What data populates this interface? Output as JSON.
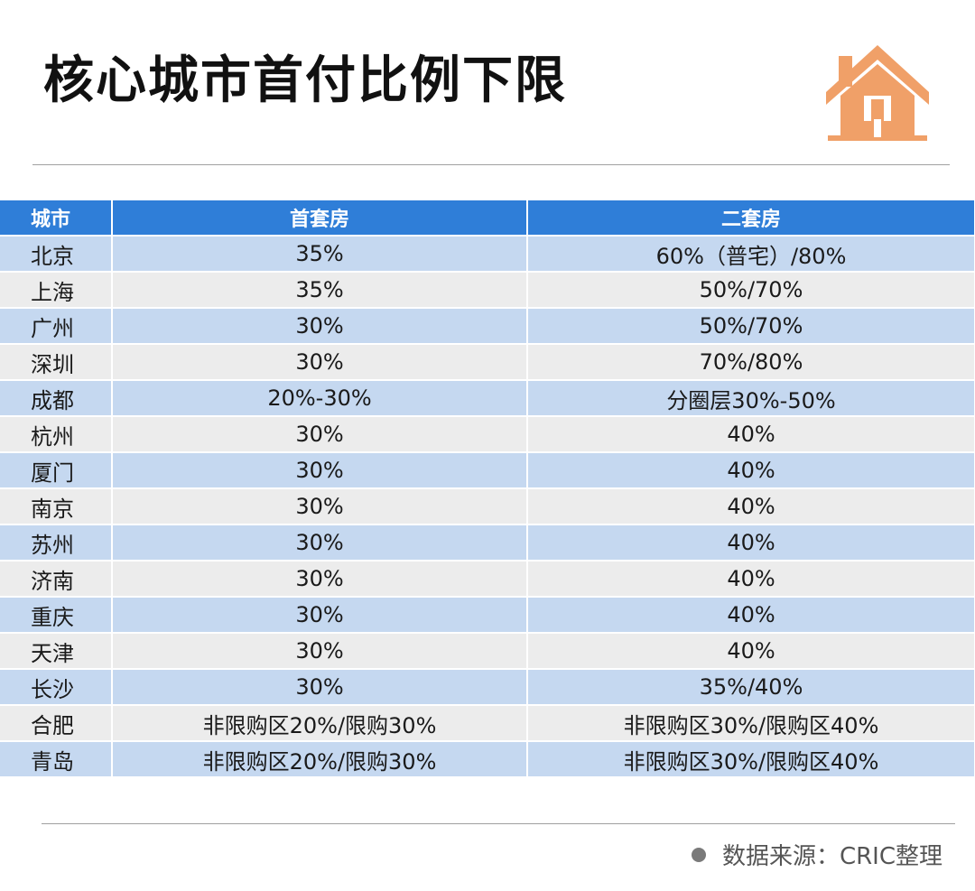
{
  "title": "核心城市首付比例下限",
  "header": {
    "city": "城市",
    "first": "首套房",
    "second": "二套房"
  },
  "rows": [
    {
      "city": "北京",
      "first": "35%",
      "second": "60%（普宅）/80%"
    },
    {
      "city": "上海",
      "first": "35%",
      "second": "50%/70%"
    },
    {
      "city": "广州",
      "first": "30%",
      "second": "50%/70%"
    },
    {
      "city": "深圳",
      "first": "30%",
      "second": "70%/80%"
    },
    {
      "city": "成都",
      "first": "20%-30%",
      "second": "分圈层30%-50%"
    },
    {
      "city": "杭州",
      "first": "30%",
      "second": "40%"
    },
    {
      "city": "厦门",
      "first": "30%",
      "second": "40%"
    },
    {
      "city": "南京",
      "first": "30%",
      "second": "40%"
    },
    {
      "city": "苏州",
      "first": "30%",
      "second": "40%"
    },
    {
      "city": "济南",
      "first": "30%",
      "second": "40%"
    },
    {
      "city": "重庆",
      "first": "30%",
      "second": "40%"
    },
    {
      "city": "天津",
      "first": "30%",
      "second": "40%"
    },
    {
      "city": "长沙",
      "first": "30%",
      "second": "35%/40%"
    },
    {
      "city": "合肥",
      "first": "非限购区20%/限购30%",
      "second": "非限购区30%/限购区40%"
    },
    {
      "city": "青岛",
      "first": "非限购区20%/限购30%",
      "second": "非限购区30%/限购区40%"
    }
  ],
  "source": "数据来源：CRIC整理",
  "icon": "house-icon",
  "colors": {
    "header_bg": "#2f7ed8",
    "row_blue": "#c5d8f0",
    "row_gray": "#ececec",
    "icon": "#f0a068"
  }
}
